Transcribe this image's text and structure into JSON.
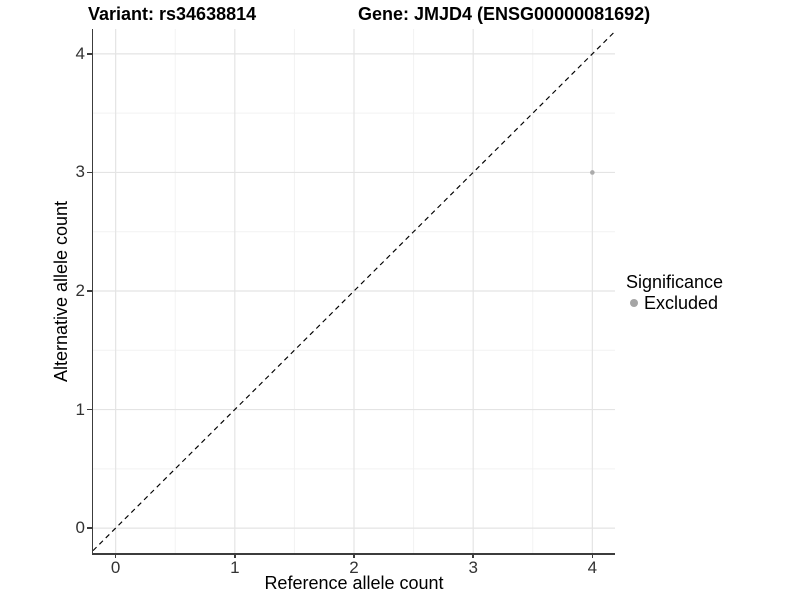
{
  "chart_data": {
    "type": "scatter",
    "title_variant": "Variant: rs34638814",
    "title_gene": "Gene: JMJD4 (ENSG00000081692)",
    "xlabel": "Reference allele count",
    "ylabel": "Alternative allele count",
    "xlim": [
      -0.19,
      4.19
    ],
    "ylim": [
      -0.21,
      4.21
    ],
    "xticks": [
      0,
      1,
      2,
      3,
      4
    ],
    "yticks": [
      0,
      1,
      2,
      3,
      4
    ],
    "minor_grid_step": 0.5,
    "grid": "major+minor",
    "legend_position": "right",
    "series": [
      {
        "name": "Excluded",
        "points": [
          {
            "x": 4,
            "y": 3
          }
        ],
        "color": "#ABABAB",
        "marker_radius": 2.3
      }
    ],
    "reference_line": {
      "kind": "identity y=x",
      "style": "dashed",
      "color": "#000000"
    }
  },
  "legend": {
    "title": "Significance",
    "items": [
      {
        "label": "Excluded",
        "color": "#A5A5A5"
      }
    ]
  },
  "colors": {
    "background": "#FFFFFF",
    "grid_major": "#E4E4E4",
    "grid_minor": "#F2F2F2",
    "axis_line": "#3C3C3C",
    "tick_text": "#333333"
  }
}
